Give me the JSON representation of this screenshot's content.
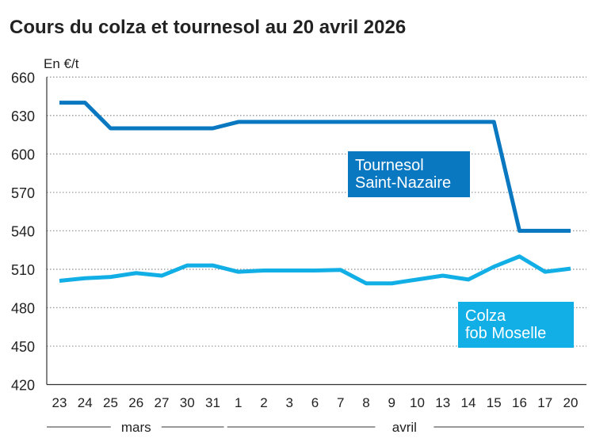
{
  "chart_data": {
    "type": "line",
    "title": "Cours du colza et tournesol au 20 avril 2026",
    "ylabel": "En €/t",
    "ylim": [
      420,
      660
    ],
    "yticks": [
      660,
      630,
      600,
      570,
      540,
      510,
      480,
      450,
      420
    ],
    "grid": true,
    "categories": [
      "23",
      "24",
      "25",
      "26",
      "27",
      "30",
      "31",
      "1",
      "2",
      "3",
      "6",
      "7",
      "8",
      "9",
      "10",
      "13",
      "14",
      "15",
      "16",
      "17",
      "20"
    ],
    "months": [
      {
        "label": "mars",
        "from": 0,
        "to": 6
      },
      {
        "label": "avril",
        "from": 7,
        "to": 20
      }
    ],
    "series": [
      {
        "name": "Tournesol Saint-Nazaire",
        "name_lines": [
          "Tournesol",
          "Saint-Nazaire"
        ],
        "color": "#0a78c0",
        "values": [
          640,
          640,
          620,
          620,
          620,
          620,
          620,
          625,
          625,
          625,
          625,
          625,
          625,
          625,
          625,
          625,
          625,
          625,
          540,
          540,
          540
        ]
      },
      {
        "name": "Colza fob Moselle",
        "name_lines": [
          "Colza",
          "fob Moselle"
        ],
        "color": "#12aee6",
        "values": [
          501,
          503,
          504,
          507,
          505,
          513,
          513,
          508,
          509,
          509,
          509,
          509.5,
          499,
          499,
          502,
          505,
          502,
          512,
          520,
          508,
          510.5
        ]
      }
    ]
  }
}
